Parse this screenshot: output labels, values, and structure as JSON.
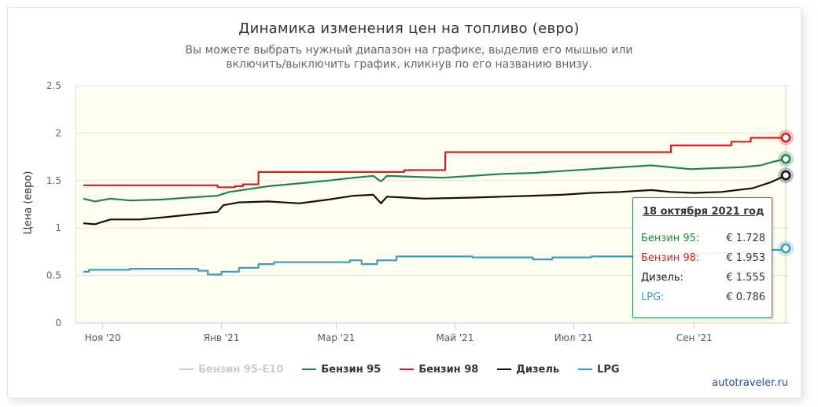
{
  "header": {
    "title": "Динамика изменения цен на топливо (евро)",
    "subtitle_line1": "Вы можете выбрать нужный диапазон на графике, выделив его мышью или",
    "subtitle_line2": "включить/выключить график, кликнув по его названию внизу."
  },
  "chart_data": {
    "type": "line",
    "ylabel": "Цена (евро)",
    "ylim": [
      0,
      2.5
    ],
    "yticks": [
      {
        "value": 0,
        "label": "0"
      },
      {
        "value": 0.5,
        "label": "0.5"
      },
      {
        "value": 1,
        "label": "1"
      },
      {
        "value": 1.5,
        "label": "1.5"
      },
      {
        "value": 2,
        "label": "2"
      },
      {
        "value": 2.5,
        "label": "2.5"
      }
    ],
    "xrange": [
      "2020-10-18",
      "2021-10-20"
    ],
    "xticks": [
      {
        "date": "2020-11-01",
        "label": "Ноя '20"
      },
      {
        "date": "2021-01-01",
        "label": "Янв '21"
      },
      {
        "date": "2021-03-01",
        "label": "Мар '21"
      },
      {
        "date": "2021-05-01",
        "label": "Май '21"
      },
      {
        "date": "2021-07-01",
        "label": "Июл '21"
      },
      {
        "date": "2021-09-01",
        "label": "Сен '21"
      }
    ],
    "plot_background": "#fffef0",
    "grid": true,
    "legend_position": "bottom",
    "series": [
      {
        "name": "Бензин 95-E10",
        "color": "#cccccc",
        "visible": false,
        "points": []
      },
      {
        "name": "Бензин 95",
        "color": "#1e8449",
        "visible": true,
        "step": false,
        "points": [
          [
            "2020-10-22",
            1.31
          ],
          [
            "2020-10-28",
            1.28
          ],
          [
            "2020-11-05",
            1.31
          ],
          [
            "2020-11-15",
            1.29
          ],
          [
            "2020-12-01",
            1.3
          ],
          [
            "2020-12-15",
            1.32
          ],
          [
            "2020-12-30",
            1.34
          ],
          [
            "2021-01-05",
            1.38
          ],
          [
            "2021-01-15",
            1.41
          ],
          [
            "2021-01-25",
            1.44
          ],
          [
            "2021-02-10",
            1.47
          ],
          [
            "2021-02-25",
            1.5
          ],
          [
            "2021-03-10",
            1.53
          ],
          [
            "2021-03-20",
            1.55
          ],
          [
            "2021-03-24",
            1.49
          ],
          [
            "2021-03-27",
            1.55
          ],
          [
            "2021-04-10",
            1.54
          ],
          [
            "2021-04-25",
            1.53
          ],
          [
            "2021-05-10",
            1.55
          ],
          [
            "2021-05-25",
            1.57
          ],
          [
            "2021-06-10",
            1.58
          ],
          [
            "2021-06-25",
            1.6
          ],
          [
            "2021-07-10",
            1.62
          ],
          [
            "2021-07-25",
            1.64
          ],
          [
            "2021-08-10",
            1.66
          ],
          [
            "2021-08-20",
            1.64
          ],
          [
            "2021-08-30",
            1.62
          ],
          [
            "2021-09-10",
            1.63
          ],
          [
            "2021-09-25",
            1.64
          ],
          [
            "2021-10-05",
            1.66
          ],
          [
            "2021-10-12",
            1.7
          ],
          [
            "2021-10-18",
            1.728
          ]
        ]
      },
      {
        "name": "Бензин 98",
        "color": "#d42020",
        "visible": true,
        "step": true,
        "points": [
          [
            "2020-10-22",
            1.45
          ],
          [
            "2020-11-15",
            1.45
          ],
          [
            "2020-12-30",
            1.43
          ],
          [
            "2021-01-08",
            1.44
          ],
          [
            "2021-01-12",
            1.46
          ],
          [
            "2021-01-20",
            1.59
          ],
          [
            "2021-04-05",
            1.61
          ],
          [
            "2021-04-26",
            1.8
          ],
          [
            "2021-08-20",
            1.87
          ],
          [
            "2021-09-20",
            1.91
          ],
          [
            "2021-09-30",
            1.95
          ],
          [
            "2021-10-18",
            1.953
          ]
        ]
      },
      {
        "name": "Дизель",
        "color": "#111111",
        "visible": true,
        "step": false,
        "points": [
          [
            "2020-10-22",
            1.05
          ],
          [
            "2020-10-28",
            1.04
          ],
          [
            "2020-11-05",
            1.09
          ],
          [
            "2020-11-20",
            1.09
          ],
          [
            "2020-12-01",
            1.11
          ],
          [
            "2020-12-20",
            1.15
          ],
          [
            "2020-12-30",
            1.17
          ],
          [
            "2021-01-02",
            1.24
          ],
          [
            "2021-01-10",
            1.27
          ],
          [
            "2021-01-25",
            1.28
          ],
          [
            "2021-02-10",
            1.26
          ],
          [
            "2021-02-25",
            1.3
          ],
          [
            "2021-03-10",
            1.34
          ],
          [
            "2021-03-20",
            1.35
          ],
          [
            "2021-03-24",
            1.26
          ],
          [
            "2021-03-27",
            1.33
          ],
          [
            "2021-04-15",
            1.31
          ],
          [
            "2021-05-10",
            1.32
          ],
          [
            "2021-05-25",
            1.33
          ],
          [
            "2021-06-10",
            1.34
          ],
          [
            "2021-06-25",
            1.35
          ],
          [
            "2021-07-10",
            1.37
          ],
          [
            "2021-07-25",
            1.38
          ],
          [
            "2021-08-10",
            1.4
          ],
          [
            "2021-08-20",
            1.38
          ],
          [
            "2021-09-01",
            1.37
          ],
          [
            "2021-09-15",
            1.38
          ],
          [
            "2021-10-01",
            1.42
          ],
          [
            "2021-10-10",
            1.48
          ],
          [
            "2021-10-18",
            1.555
          ]
        ]
      },
      {
        "name": "LPG",
        "color": "#3b9bc2",
        "visible": true,
        "step": true,
        "points": [
          [
            "2020-10-22",
            0.54
          ],
          [
            "2020-10-25",
            0.56
          ],
          [
            "2020-11-15",
            0.57
          ],
          [
            "2020-12-20",
            0.55
          ],
          [
            "2020-12-25",
            0.51
          ],
          [
            "2021-01-01",
            0.54
          ],
          [
            "2021-01-10",
            0.58
          ],
          [
            "2021-01-20",
            0.62
          ],
          [
            "2021-01-28",
            0.64
          ],
          [
            "2021-03-08",
            0.66
          ],
          [
            "2021-03-14",
            0.62
          ],
          [
            "2021-03-22",
            0.66
          ],
          [
            "2021-04-01",
            0.7
          ],
          [
            "2021-05-10",
            0.69
          ],
          [
            "2021-06-10",
            0.67
          ],
          [
            "2021-06-20",
            0.69
          ],
          [
            "2021-07-10",
            0.7
          ],
          [
            "2021-07-25",
            0.7
          ],
          [
            "2021-08-05",
            0.72
          ],
          [
            "2021-08-25",
            0.73
          ],
          [
            "2021-09-10",
            0.74
          ],
          [
            "2021-09-25",
            0.75
          ],
          [
            "2021-10-10",
            0.77
          ],
          [
            "2021-10-18",
            0.786
          ]
        ]
      }
    ],
    "tooltip": {
      "date": "18 октября 2021 год",
      "rows": [
        {
          "label": "Бензин 95:",
          "value": "€ 1.728",
          "color": "#1e8449"
        },
        {
          "label": "Бензин 98:",
          "value": "€ 1.953",
          "color": "#d42020"
        },
        {
          "label": "Дизель:",
          "value": "€ 1.555",
          "color": "#111111"
        },
        {
          "label": "LPG:",
          "value": "€ 0.786",
          "color": "#3b9bc2"
        }
      ]
    }
  },
  "footer": {
    "credit": "autotraveler.ru"
  }
}
